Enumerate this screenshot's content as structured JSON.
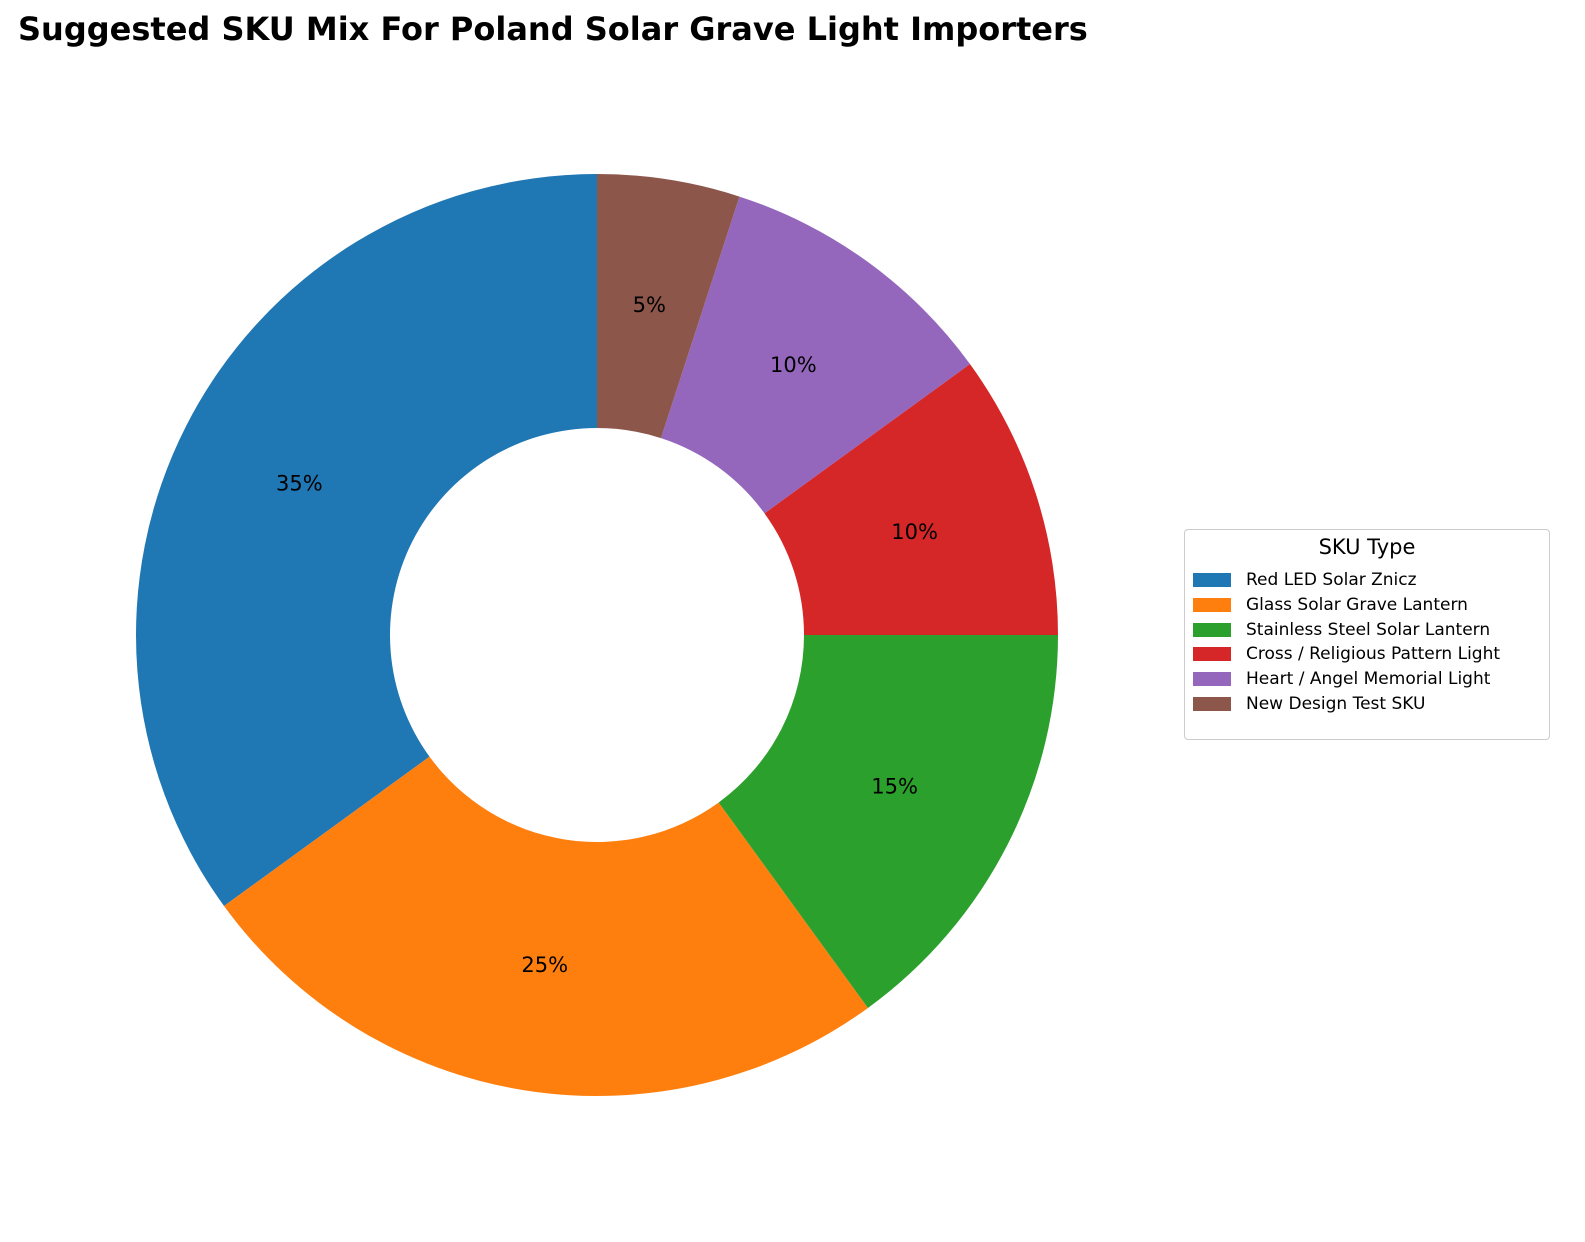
{
  "chart_data": {
    "type": "pie",
    "variant": "donut",
    "title": "Suggested SKU Mix For Poland Solar Grave Light Importers",
    "legend": {
      "title": "SKU Type",
      "placement": "center-right"
    },
    "categories": [
      "Red LED Solar Znicz",
      "Glass Solar Grave Lantern",
      "Stainless Steel Solar Lantern",
      "Cross / Religious Pattern Light",
      "Heart / Angel Memorial Light",
      "New Design Test SKU"
    ],
    "values": [
      35,
      25,
      15,
      10,
      10,
      5
    ],
    "value_labels": [
      "35%",
      "25%",
      "15%",
      "10%",
      "10%",
      "5%"
    ],
    "colors": [
      "#1f77b4",
      "#ff7f0e",
      "#2ca02c",
      "#d62728",
      "#9467bd",
      "#8c564b"
    ],
    "start_angle": "top (12 o'clock)",
    "direction": "counterclockwise"
  }
}
